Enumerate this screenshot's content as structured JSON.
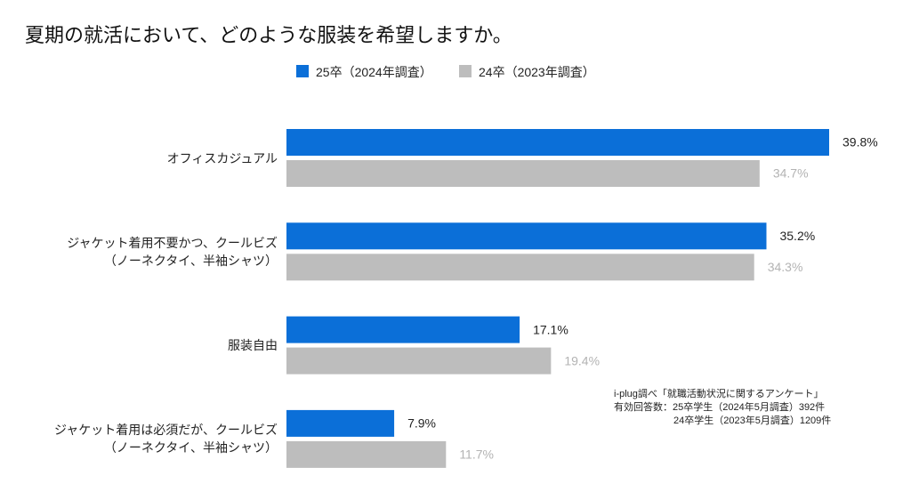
{
  "chart_data": {
    "type": "hbar",
    "title": "夏期の就活において、どのような服装を希望しますか。",
    "categories": [
      "オフィスカジュアル",
      "ジャケット着用不要かつ、クールビズ\n（ノーネクタイ、半袖シャツ）",
      "服装自由",
      "ジャケット着用は必須だが、クールビズ\n（ノーネクタイ、半袖シャツ）"
    ],
    "series": [
      {
        "name": "25卒（2024年調査）",
        "color": "#0b6fd8",
        "label_color": "#222222",
        "values": [
          39.8,
          35.2,
          17.1,
          7.9
        ],
        "value_labels": [
          "39.8%",
          "35.2%",
          "17.1%",
          "7.9%"
        ]
      },
      {
        "name": "24卒（2023年調査）",
        "color": "#bdbdbd",
        "label_color": "#b3b3b3",
        "values": [
          34.7,
          34.3,
          19.4,
          11.7
        ],
        "value_labels": [
          "34.7%",
          "34.3%",
          "19.4%",
          "11.7%"
        ]
      }
    ],
    "footnote": [
      "i-plug調べ「就職活動状況に関するアンケート」",
      "有効回答数：25卒学生（2024年5月調査）392件",
      "24卒学生（2023年5月調査）1209件"
    ]
  }
}
